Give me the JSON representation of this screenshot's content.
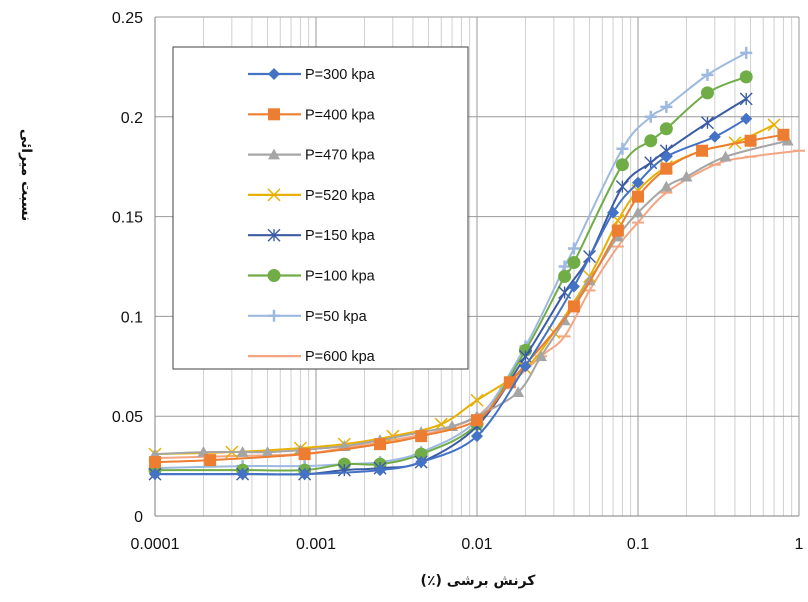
{
  "chart_data": {
    "type": "line",
    "xscale": "log",
    "xlim": [
      0.0001,
      1
    ],
    "ylim": [
      0,
      0.25
    ],
    "xticks": [
      "0.0001",
      "0.001",
      "0.01",
      "0.1",
      "1"
    ],
    "yticks": [
      "0",
      "0.05",
      "0.1",
      "0.15",
      "0.2",
      "0.25"
    ],
    "xlabel": "کرنش برشی (٪)",
    "ylabel": "نسبت میرائی",
    "grid": "log-minor-vertical, major-horizontal",
    "legend_position": "upper-left inside",
    "series": [
      {
        "name": "P=300 kpa",
        "color": "#4472C4",
        "marker": "diamond",
        "points": [
          [
            0.0001,
            0.021
          ],
          [
            0.00035,
            0.021
          ],
          [
            0.00085,
            0.021
          ],
          [
            0.0025,
            0.023
          ],
          [
            0.0045,
            0.027
          ],
          [
            0.01,
            0.04
          ],
          [
            0.02,
            0.075
          ],
          [
            0.04,
            0.115
          ],
          [
            0.07,
            0.152
          ],
          [
            0.1,
            0.167
          ],
          [
            0.15,
            0.18
          ],
          [
            0.3,
            0.19
          ],
          [
            0.47,
            0.199
          ]
        ]
      },
      {
        "name": "P=400 kpa",
        "color": "#ED7D31",
        "marker": "square",
        "points": [
          [
            0.0001,
            0.027
          ],
          [
            0.00022,
            0.028
          ],
          [
            0.00085,
            0.031
          ],
          [
            0.0025,
            0.036
          ],
          [
            0.0045,
            0.04
          ],
          [
            0.01,
            0.048
          ],
          [
            0.016,
            0.067
          ],
          [
            0.04,
            0.105
          ],
          [
            0.075,
            0.143
          ],
          [
            0.1,
            0.16
          ],
          [
            0.15,
            0.174
          ],
          [
            0.25,
            0.183
          ],
          [
            0.5,
            0.188
          ],
          [
            0.8,
            0.191
          ]
        ]
      },
      {
        "name": "P=470 kpa",
        "color": "#A5A5A5",
        "marker": "triangle",
        "points": [
          [
            0.0001,
            0.031
          ],
          [
            0.0002,
            0.032
          ],
          [
            0.00035,
            0.032
          ],
          [
            0.0005,
            0.032
          ],
          [
            0.0008,
            0.033
          ],
          [
            0.0015,
            0.035
          ],
          [
            0.0025,
            0.038
          ],
          [
            0.0045,
            0.042
          ],
          [
            0.007,
            0.045
          ],
          [
            0.01,
            0.05
          ],
          [
            0.018,
            0.062
          ],
          [
            0.025,
            0.08
          ],
          [
            0.035,
            0.098
          ],
          [
            0.05,
            0.118
          ],
          [
            0.075,
            0.14
          ],
          [
            0.1,
            0.152
          ],
          [
            0.15,
            0.165
          ],
          [
            0.2,
            0.17
          ],
          [
            0.35,
            0.18
          ],
          [
            0.85,
            0.188
          ]
        ]
      },
      {
        "name": "P=520 kpa",
        "color": "#E8B000",
        "marker": "x",
        "points": [
          [
            0.0001,
            0.031
          ],
          [
            0.0003,
            0.032
          ],
          [
            0.0008,
            0.034
          ],
          [
            0.0015,
            0.036
          ],
          [
            0.003,
            0.04
          ],
          [
            0.006,
            0.046
          ],
          [
            0.01,
            0.058
          ],
          [
            0.02,
            0.074
          ],
          [
            0.03,
            0.092
          ],
          [
            0.05,
            0.12
          ],
          [
            0.075,
            0.148
          ],
          [
            0.1,
            0.163
          ],
          [
            0.15,
            0.175
          ],
          [
            0.25,
            0.183
          ],
          [
            0.4,
            0.187
          ],
          [
            0.7,
            0.196
          ]
        ]
      },
      {
        "name": "P=150 kpa",
        "color": "#3B5BA5",
        "marker": "asterisk",
        "points": [
          [
            0.0001,
            0.021
          ],
          [
            0.00035,
            0.021
          ],
          [
            0.00085,
            0.021
          ],
          [
            0.0015,
            0.023
          ],
          [
            0.0025,
            0.024
          ],
          [
            0.0045,
            0.027
          ],
          [
            0.01,
            0.045
          ],
          [
            0.02,
            0.08
          ],
          [
            0.035,
            0.112
          ],
          [
            0.05,
            0.13
          ],
          [
            0.08,
            0.165
          ],
          [
            0.12,
            0.177
          ],
          [
            0.15,
            0.183
          ],
          [
            0.27,
            0.197
          ],
          [
            0.47,
            0.209
          ]
        ]
      },
      {
        "name": "P=100 kpa",
        "color": "#70AD47",
        "marker": "circle",
        "points": [
          [
            0.0001,
            0.023
          ],
          [
            0.00035,
            0.023
          ],
          [
            0.00085,
            0.023
          ],
          [
            0.0015,
            0.026
          ],
          [
            0.0025,
            0.026
          ],
          [
            0.0045,
            0.031
          ],
          [
            0.01,
            0.046
          ],
          [
            0.02,
            0.083
          ],
          [
            0.035,
            0.12
          ],
          [
            0.04,
            0.127
          ],
          [
            0.08,
            0.176
          ],
          [
            0.12,
            0.188
          ],
          [
            0.15,
            0.194
          ],
          [
            0.27,
            0.212
          ],
          [
            0.47,
            0.22
          ]
        ]
      },
      {
        "name": "P=50 kpa",
        "color": "#9DB9E0",
        "marker": "plus",
        "points": [
          [
            0.0001,
            0.024
          ],
          [
            0.00035,
            0.025
          ],
          [
            0.00085,
            0.025
          ],
          [
            0.0015,
            0.026
          ],
          [
            0.0025,
            0.027
          ],
          [
            0.0045,
            0.032
          ],
          [
            0.01,
            0.048
          ],
          [
            0.02,
            0.085
          ],
          [
            0.035,
            0.125
          ],
          [
            0.04,
            0.134
          ],
          [
            0.08,
            0.184
          ],
          [
            0.12,
            0.2
          ],
          [
            0.15,
            0.205
          ],
          [
            0.27,
            0.221
          ],
          [
            0.47,
            0.232
          ]
        ]
      },
      {
        "name": "P=600 kpa",
        "color": "#F4A582",
        "marker": "dash",
        "points": [
          [
            0.0001,
            0.029
          ],
          [
            0.0003,
            0.03
          ],
          [
            0.0008,
            0.031
          ],
          [
            0.0015,
            0.034
          ],
          [
            0.003,
            0.038
          ],
          [
            0.006,
            0.043
          ],
          [
            0.01,
            0.05
          ],
          [
            0.015,
            0.064
          ],
          [
            0.025,
            0.08
          ],
          [
            0.035,
            0.09
          ],
          [
            0.05,
            0.113
          ],
          [
            0.075,
            0.135
          ],
          [
            0.1,
            0.147
          ],
          [
            0.15,
            0.162
          ],
          [
            0.3,
            0.176
          ],
          [
            0.5,
            0.18
          ],
          [
            1,
            0.183
          ]
        ]
      }
    ]
  }
}
